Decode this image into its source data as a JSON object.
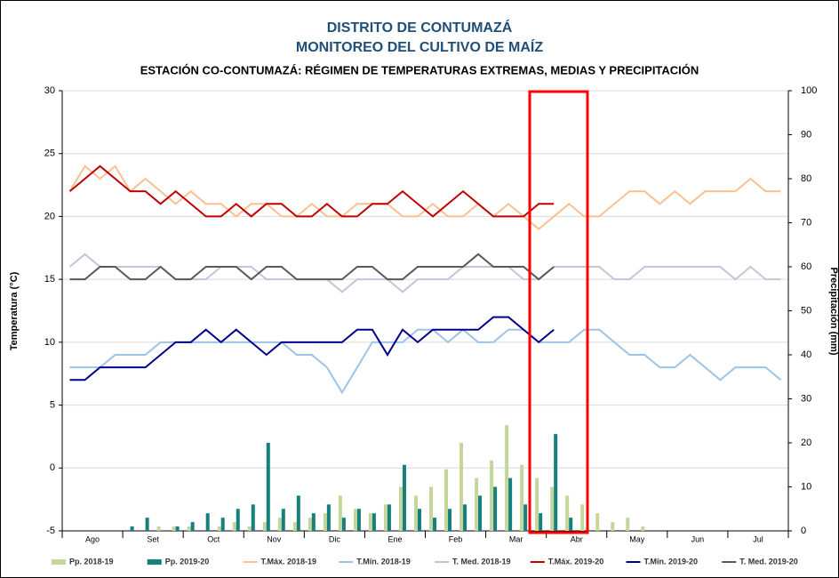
{
  "chart_data": {
    "type": "line",
    "title": "DISTRITO DE CONTUMAZÁ",
    "subtitle": "MONITOREO DEL CULTIVO DE MAÍZ",
    "chart_title": "ESTACIÓN CO-CONTUMAZÁ: RÉGIMEN DE TEMPERATURAS EXTREMAS, MEDIAS Y PRECIPITACIÓN",
    "y_label": "Temperatura (°C)",
    "y2_label": "Precipitación (mm)",
    "categories": [
      null,
      "Ago",
      null,
      null,
      null,
      "Set",
      null,
      null,
      null,
      "Oct",
      null,
      null,
      null,
      "Nov",
      null,
      null,
      null,
      "Dic",
      null,
      null,
      null,
      "Ene",
      null,
      null,
      null,
      "Feb",
      null,
      null,
      null,
      "Mar",
      null,
      null,
      null,
      "Abr",
      null,
      null,
      null,
      "May",
      null,
      null,
      null,
      "Jun",
      null,
      null,
      null,
      "Jul",
      null,
      null
    ],
    "ylim": [
      -5,
      30
    ],
    "yticks": [
      -5,
      0,
      5,
      10,
      15,
      20,
      25,
      30
    ],
    "y2lim": [
      0,
      100
    ],
    "y2ticks": [
      0,
      10,
      20,
      30,
      40,
      50,
      60,
      70,
      80,
      90,
      100
    ],
    "grid": true,
    "series": [
      {
        "name": "Pp. 2018-19",
        "type": "bar",
        "axis": "y2",
        "color": "#c4d79b",
        "values": [
          0,
          0,
          0,
          0,
          0,
          0,
          1,
          1,
          1,
          0,
          1,
          2,
          1,
          2,
          3,
          2,
          3,
          4,
          8,
          5,
          4,
          6,
          10,
          8,
          10,
          14,
          20,
          12,
          16,
          24,
          15,
          12,
          10,
          8,
          6,
          4,
          2,
          3,
          1,
          0,
          0,
          0,
          0,
          0,
          0,
          0,
          0,
          0
        ]
      },
      {
        "name": "Pp. 2019-20",
        "type": "bar",
        "axis": "y2",
        "color": "#17807e",
        "values": [
          0,
          0,
          0,
          0,
          1,
          3,
          0,
          1,
          2,
          4,
          3,
          5,
          6,
          20,
          5,
          8,
          4,
          6,
          3,
          5,
          4,
          6,
          15,
          5,
          3,
          5,
          6,
          8,
          10,
          12,
          6,
          4,
          22,
          3,
          null,
          null,
          null,
          null,
          null,
          null,
          null,
          null,
          null,
          null,
          null,
          null,
          null,
          null
        ]
      },
      {
        "name": "T.Máx. 2018-19",
        "type": "line",
        "color": "#fac090",
        "values": [
          22,
          24,
          23,
          24,
          22,
          23,
          22,
          21,
          22,
          21,
          21,
          20,
          21,
          21,
          20,
          20,
          21,
          20,
          20,
          21,
          21,
          21,
          20,
          20,
          21,
          20,
          20,
          21,
          20,
          21,
          20,
          19,
          20,
          21,
          20,
          20,
          21,
          22,
          22,
          21,
          22,
          21,
          22,
          22,
          22,
          23,
          22,
          22
        ]
      },
      {
        "name": "T.Mín. 2018-19",
        "type": "line",
        "color": "#9dc3e6",
        "values": [
          8,
          8,
          8,
          9,
          9,
          9,
          10,
          10,
          10,
          10,
          10,
          10,
          10,
          10,
          10,
          9,
          9,
          8,
          6,
          8,
          10,
          10,
          10,
          11,
          11,
          10,
          11,
          10,
          10,
          11,
          11,
          10,
          10,
          10,
          11,
          11,
          10,
          9,
          9,
          8,
          8,
          9,
          8,
          7,
          8,
          8,
          8,
          7
        ]
      },
      {
        "name": "T. Med. 2018-19",
        "type": "line",
        "color": "#ccc0da",
        "values": [
          16,
          17,
          16,
          16,
          16,
          16,
          16,
          15,
          15,
          15,
          16,
          16,
          16,
          15,
          15,
          15,
          15,
          15,
          14,
          15,
          15,
          15,
          14,
          15,
          15,
          15,
          16,
          16,
          16,
          16,
          15,
          15,
          16,
          16,
          16,
          16,
          15,
          15,
          16,
          16,
          16,
          16,
          16,
          16,
          15,
          16,
          15,
          15
        ]
      },
      {
        "name": "T.Máx. 2019-20",
        "type": "line",
        "color": "#c00000",
        "values": [
          22,
          23,
          24,
          23,
          22,
          22,
          21,
          22,
          21,
          20,
          20,
          21,
          20,
          21,
          21,
          20,
          20,
          21,
          20,
          20,
          21,
          21,
          22,
          21,
          20,
          21,
          22,
          21,
          20,
          20,
          20,
          21,
          21,
          null,
          null,
          null,
          null,
          null,
          null,
          null,
          null,
          null,
          null,
          null,
          null,
          null,
          null,
          null
        ]
      },
      {
        "name": "T.Mín. 2019-20",
        "type": "line",
        "color": "#00008b",
        "values": [
          7,
          7,
          8,
          8,
          8,
          8,
          9,
          10,
          10,
          11,
          10,
          11,
          10,
          9,
          10,
          10,
          10,
          10,
          10,
          11,
          11,
          9,
          11,
          10,
          11,
          11,
          11,
          11,
          12,
          12,
          11,
          10,
          11,
          null,
          null,
          null,
          null,
          null,
          null,
          null,
          null,
          null,
          null,
          null,
          null,
          null,
          null,
          null
        ]
      },
      {
        "name": "T. Med. 2019-20",
        "type": "line",
        "color": "#595959",
        "values": [
          15,
          15,
          16,
          16,
          15,
          15,
          16,
          15,
          15,
          16,
          16,
          16,
          15,
          16,
          16,
          15,
          15,
          15,
          15,
          16,
          16,
          15,
          15,
          16,
          16,
          16,
          16,
          17,
          16,
          16,
          16,
          15,
          16,
          null,
          null,
          null,
          null,
          null,
          null,
          null,
          null,
          null,
          null,
          null,
          null,
          null,
          null,
          null
        ]
      }
    ]
  }
}
